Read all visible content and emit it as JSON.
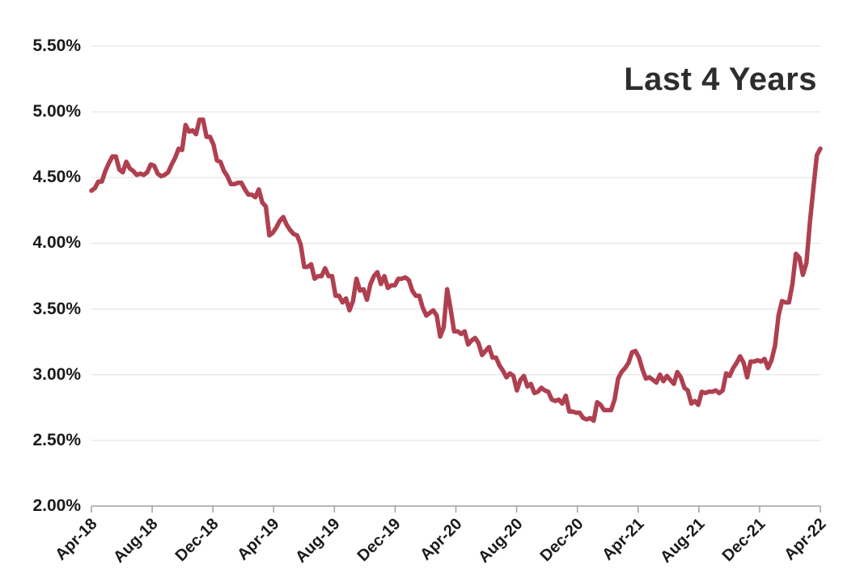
{
  "chart_data": {
    "type": "line",
    "title": "Last 4 Years",
    "xlabel": "",
    "ylabel": "",
    "ylim": [
      2.0,
      5.5
    ],
    "grid": true,
    "legend": "none",
    "y_ticks": [
      {
        "value": 5.5,
        "label": "5.50%"
      },
      {
        "value": 5.0,
        "label": "5.00%"
      },
      {
        "value": 4.5,
        "label": "4.50%"
      },
      {
        "value": 4.0,
        "label": "4.00%"
      },
      {
        "value": 3.5,
        "label": "3.50%"
      },
      {
        "value": 3.0,
        "label": "3.00%"
      },
      {
        "value": 2.5,
        "label": "2.50%"
      },
      {
        "value": 2.0,
        "label": "2.00%"
      }
    ],
    "x_tick_labels": [
      "Apr-18",
      "Aug-18",
      "Dec-18",
      "Apr-19",
      "Aug-19",
      "Dec-19",
      "Apr-20",
      "Aug-20",
      "Dec-20",
      "Apr-21",
      "Aug-21",
      "Dec-21",
      "Apr-22"
    ],
    "values": [
      4.4,
      4.42,
      4.47,
      4.47,
      4.55,
      4.61,
      4.66,
      4.66,
      4.56,
      4.54,
      4.62,
      4.57,
      4.55,
      4.52,
      4.53,
      4.52,
      4.54,
      4.6,
      4.59,
      4.53,
      4.51,
      4.52,
      4.54,
      4.6,
      4.65,
      4.72,
      4.71,
      4.9,
      4.85,
      4.86,
      4.83,
      4.94,
      4.94,
      4.81,
      4.81,
      4.75,
      4.63,
      4.62,
      4.55,
      4.51,
      4.45,
      4.45,
      4.46,
      4.46,
      4.41,
      4.37,
      4.37,
      4.35,
      4.41,
      4.31,
      4.28,
      4.06,
      4.08,
      4.12,
      4.17,
      4.2,
      4.14,
      4.1,
      4.07,
      4.06,
      3.99,
      3.82,
      3.82,
      3.84,
      3.73,
      3.75,
      3.75,
      3.81,
      3.75,
      3.75,
      3.6,
      3.6,
      3.55,
      3.58,
      3.49,
      3.56,
      3.73,
      3.64,
      3.65,
      3.57,
      3.69,
      3.75,
      3.78,
      3.69,
      3.75,
      3.66,
      3.68,
      3.68,
      3.73,
      3.73,
      3.74,
      3.72,
      3.64,
      3.6,
      3.6,
      3.51,
      3.45,
      3.47,
      3.49,
      3.45,
      3.29,
      3.36,
      3.65,
      3.5,
      3.33,
      3.33,
      3.31,
      3.33,
      3.23,
      3.26,
      3.28,
      3.24,
      3.15,
      3.18,
      3.21,
      3.13,
      3.13,
      3.07,
      3.03,
      2.98,
      3.01,
      2.99,
      2.88,
      2.96,
      2.99,
      2.91,
      2.93,
      2.86,
      2.87,
      2.9,
      2.88,
      2.87,
      2.81,
      2.8,
      2.81,
      2.78,
      2.84,
      2.72,
      2.72,
      2.71,
      2.71,
      2.67,
      2.66,
      2.67,
      2.65,
      2.79,
      2.77,
      2.73,
      2.73,
      2.73,
      2.81,
      2.97,
      3.02,
      3.05,
      3.09,
      3.17,
      3.18,
      3.13,
      3.04,
      2.97,
      2.98,
      2.96,
      2.94,
      3.0,
      2.95,
      2.99,
      2.96,
      2.93,
      3.02,
      2.98,
      2.9,
      2.88,
      2.78,
      2.8,
      2.77,
      2.87,
      2.86,
      2.87,
      2.87,
      2.88,
      2.86,
      2.88,
      3.01,
      2.99,
      3.05,
      3.09,
      3.14,
      3.09,
      2.98,
      3.1,
      3.1,
      3.11,
      3.1,
      3.12,
      3.05,
      3.11,
      3.22,
      3.45,
      3.56,
      3.55,
      3.55,
      3.69,
      3.92,
      3.89,
      3.76,
      3.85,
      4.16,
      4.42,
      4.67,
      4.72
    ],
    "colors": {
      "line": "#AF4050",
      "grid": "#E0E0E0",
      "axis": "#A0A0A0",
      "tick_label": "#1A1A1A",
      "title": "#2D2D2D",
      "background": "#FFFFFF"
    }
  }
}
